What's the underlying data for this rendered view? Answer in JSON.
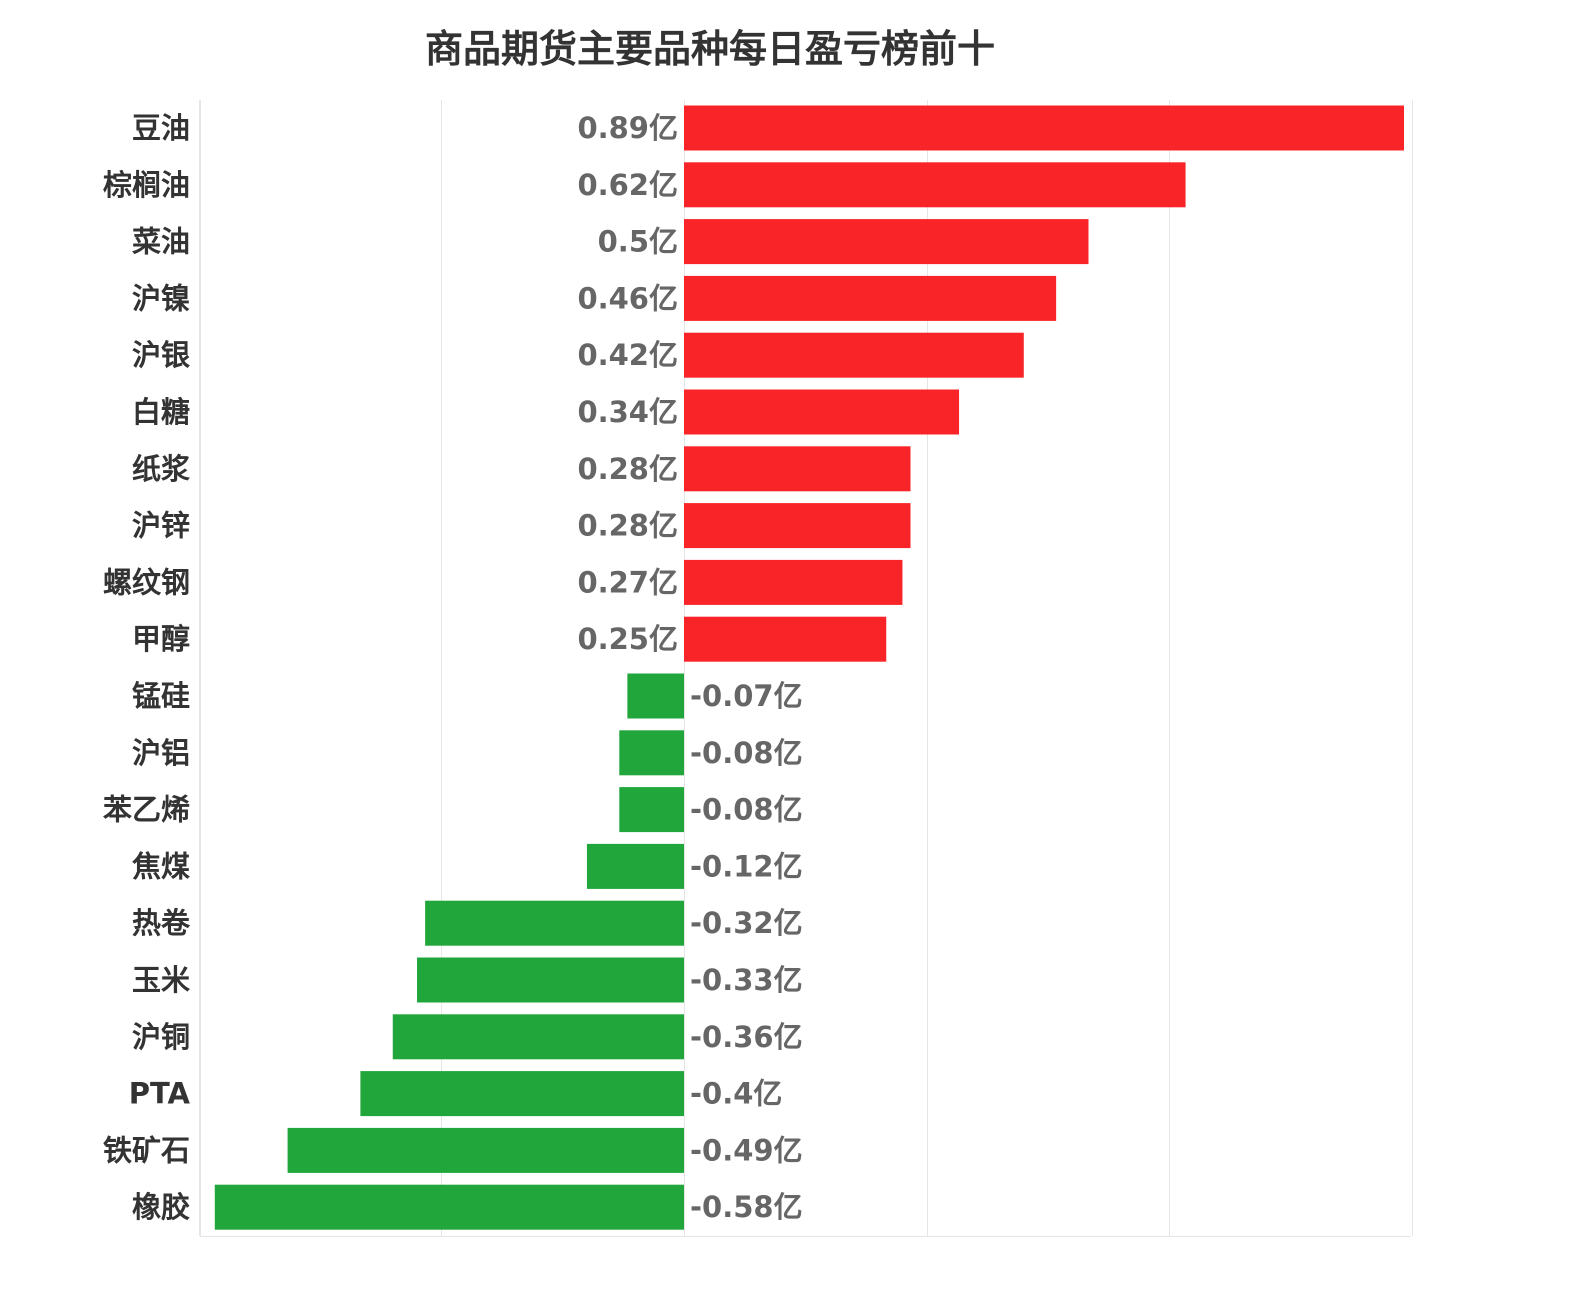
{
  "chart_data": {
    "type": "bar",
    "orientation": "horizontal",
    "title": "商品期货主要品种每日盈亏榜前十",
    "categories": [
      "豆油",
      "棕榈油",
      "菜油",
      "沪镍",
      "沪银",
      "白糖",
      "纸浆",
      "沪锌",
      "螺纹钢",
      "甲醇",
      "锰硅",
      "沪铝",
      "苯乙烯",
      "焦煤",
      "热卷",
      "玉米",
      "沪铜",
      "PTA",
      "铁矿石",
      "橡胶"
    ],
    "values": [
      0.89,
      0.62,
      0.5,
      0.46,
      0.42,
      0.34,
      0.28,
      0.28,
      0.27,
      0.25,
      -0.07,
      -0.08,
      -0.08,
      -0.12,
      -0.32,
      -0.33,
      -0.36,
      -0.4,
      -0.49,
      -0.58
    ],
    "value_labels": [
      "0.89亿",
      "0.62亿",
      "0.5亿",
      "0.46亿",
      "0.42亿",
      "0.34亿",
      "0.28亿",
      "0.28亿",
      "0.27亿",
      "0.25亿",
      "-0.07亿",
      "-0.08亿",
      "-0.08亿",
      "-0.12亿",
      "-0.32亿",
      "-0.33亿",
      "-0.36亿",
      "-0.4亿",
      "-0.49亿",
      "-0.58亿"
    ],
    "unit": "亿",
    "xlim": [
      -0.6,
      0.9
    ],
    "gridlines": [
      -0.6,
      -0.3,
      0,
      0.3,
      0.6,
      0.9
    ],
    "grid": true,
    "legend": false,
    "colors": {
      "positive": "#f92428",
      "negative": "#21a63b",
      "grid": "#e6e6e6",
      "category_text": "#333333",
      "value_text": "#666666"
    }
  }
}
